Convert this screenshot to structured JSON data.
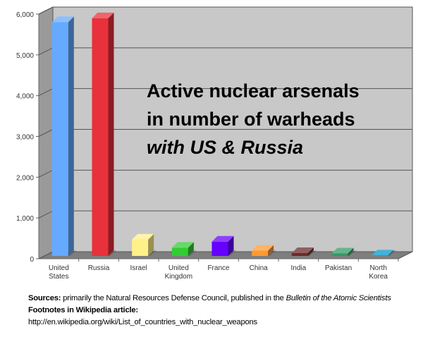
{
  "chart_data": {
    "type": "bar",
    "categories": [
      "United States",
      "Russia",
      "Israel",
      "United Kingdom",
      "France",
      "China",
      "India",
      "Pakistan",
      "North Korea"
    ],
    "category_lines": [
      [
        "United",
        "States"
      ],
      [
        "Russia"
      ],
      [
        "Israel"
      ],
      [
        "United",
        "Kingdom"
      ],
      [
        "France"
      ],
      [
        "China"
      ],
      [
        "India"
      ],
      [
        "Pakistan"
      ],
      [
        "North",
        "Korea"
      ]
    ],
    "values": [
      5735,
      5830,
      400,
      200,
      350,
      130,
      70,
      60,
      10
    ],
    "colors": [
      "#66aaff",
      "#e8313a",
      "#fff08a",
      "#33cc33",
      "#6600ff",
      "#ff9933",
      "#6b2a2a",
      "#339966",
      "#0099cc"
    ],
    "ylim": [
      0,
      6000
    ],
    "yticks": [
      0,
      1000,
      2000,
      3000,
      4000,
      5000,
      6000
    ],
    "ytick_labels": [
      "0",
      "1,000",
      "2,000",
      "3,000",
      "4,000",
      "5,000",
      "6,000"
    ],
    "title_lines": [
      "Active nuclear arsenals",
      "in number of warheads",
      "with US & Russia"
    ],
    "title_italic_line": 2,
    "grid": true
  },
  "footer": {
    "sources_label": "Sources:",
    "sources_text": " primarily the Natural Resources Defense Council, published in the ",
    "sources_publication": "Bulletin of the Atomic Scientists",
    "footnotes_label": "Footnotes in Wikipedia article:",
    "url": "http://en.wikipedia.org/wiki/List_of_countries_with_nuclear_weapons"
  }
}
